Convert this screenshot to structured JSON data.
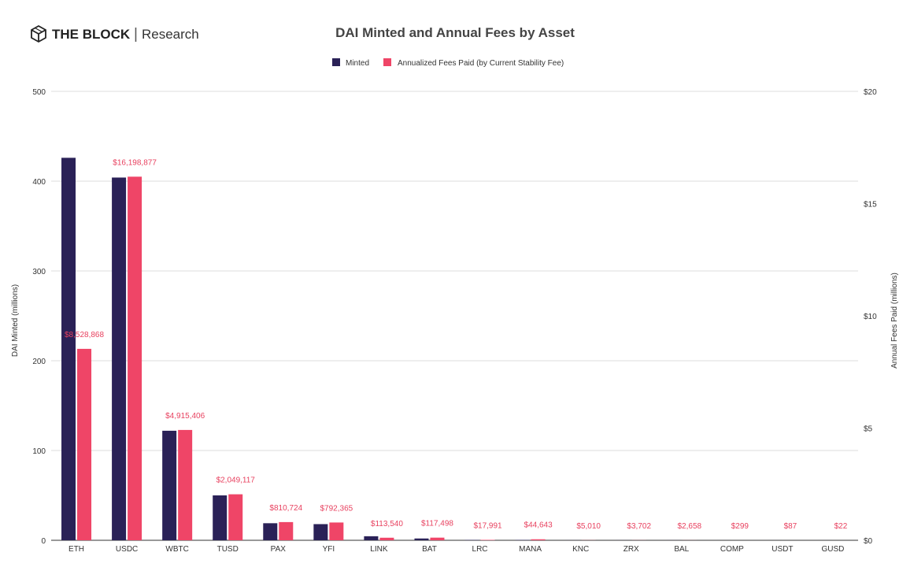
{
  "brand": {
    "name_bold": "THE BLOCK",
    "separator": "|",
    "name_light": "Research",
    "icon": "cube-logo-icon"
  },
  "colors": {
    "minted": "#2a2157",
    "fees": "#ef4567",
    "fee_label": "#e8415f",
    "grid": "#dddddd"
  },
  "chart_data": {
    "type": "bar",
    "title": "DAI Minted and Annual Fees by Asset",
    "legend_position": "top-center",
    "grid": true,
    "categories": [
      "ETH",
      "USDC",
      "WBTC",
      "TUSD",
      "PAX",
      "YFI",
      "LINK",
      "BAT",
      "LRC",
      "MANA",
      "KNC",
      "ZRX",
      "BAL",
      "COMP",
      "USDT",
      "GUSD"
    ],
    "series": [
      {
        "name": "Minted",
        "axis": "left",
        "values": [
          426,
          404,
          122,
          50,
          19,
          18,
          4.5,
          2,
          0.4,
          0.4,
          0.1,
          0.1,
          0.1,
          0.05,
          0.01,
          0.01
        ]
      },
      {
        "name": "Annualized Fees Paid (by Current Stability Fee)",
        "axis": "right",
        "values": [
          8.528868,
          16.198877,
          4.915406,
          2.049117,
          0.810724,
          0.792365,
          0.11354,
          0.117498,
          0.017991,
          0.044643,
          0.00501,
          0.003702,
          0.002658,
          0.000299,
          8.7e-05,
          2.2e-05
        ],
        "labels": [
          "$8,528,868",
          "$16,198,877",
          "$4,915,406",
          "$2,049,117",
          "$810,724",
          "$792,365",
          "$113,540",
          "$117,498",
          "$17,991",
          "$44,643",
          "$5,010",
          "$3,702",
          "$2,658",
          "$299",
          "$87",
          "$22"
        ]
      }
    ],
    "y_left": {
      "label": "DAI Minted (millions)",
      "range": [
        0,
        500
      ],
      "ticks": [
        0,
        100,
        200,
        300,
        400,
        500
      ],
      "tick_labels": [
        "0",
        "100",
        "200",
        "300",
        "400",
        "500"
      ]
    },
    "y_right": {
      "label": "Annual Fees Paid (millions)",
      "range": [
        0,
        20
      ],
      "ticks": [
        0,
        5,
        10,
        15,
        20
      ],
      "tick_labels": [
        "$0",
        "$5",
        "$10",
        "$15",
        "$20"
      ]
    }
  }
}
